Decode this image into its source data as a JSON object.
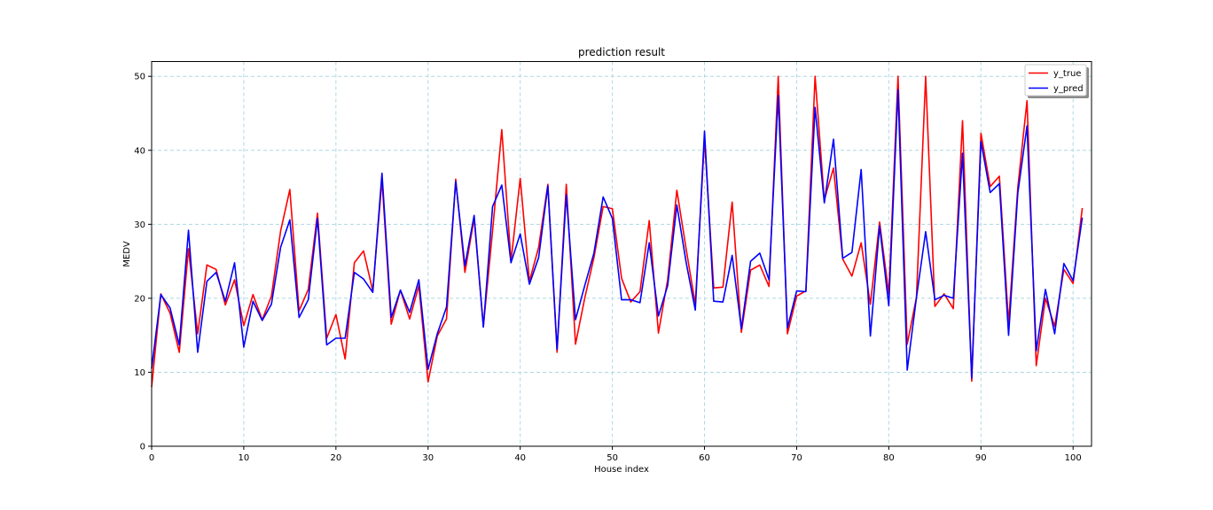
{
  "chart_data": {
    "type": "line",
    "title": "prediction result",
    "xlabel": "House index",
    "ylabel": "MEDV",
    "xlim": [
      0,
      102
    ],
    "ylim": [
      0,
      52
    ],
    "xticks": [
      0,
      10,
      20,
      30,
      40,
      50,
      60,
      70,
      80,
      90,
      100
    ],
    "yticks": [
      0,
      10,
      20,
      30,
      40,
      50
    ],
    "grid": true,
    "grid_style": "dashed",
    "grid_color": "#add8e6",
    "legend_position": "top-right",
    "series": [
      {
        "name": "y_true",
        "color": "#ff0000",
        "values": [
          8.0,
          20.6,
          18.0,
          12.7,
          26.7,
          15.2,
          24.5,
          23.9,
          19.1,
          22.5,
          16.3,
          20.5,
          17.1,
          20.3,
          29.1,
          34.7,
          18.3,
          21.2,
          31.5,
          14.6,
          17.8,
          11.8,
          24.8,
          26.4,
          21.0,
          36.0,
          16.5,
          21.1,
          17.2,
          21.7,
          8.7,
          14.9,
          17.2,
          36.1,
          23.5,
          30.8,
          16.2,
          29.1,
          42.8,
          25.0,
          36.2,
          22.3,
          26.9,
          35.4,
          12.7,
          35.4,
          13.8,
          20.0,
          25.5,
          32.4,
          32.1,
          22.7,
          19.5,
          20.9,
          30.5,
          15.3,
          22.5,
          34.6,
          26.7,
          19.2,
          41.5,
          21.4,
          21.5,
          33.0,
          15.4,
          23.8,
          24.5,
          21.6,
          50.0,
          15.2,
          20.3,
          21.0,
          50.0,
          33.3,
          37.6,
          25.3,
          23.0,
          27.5,
          19.2,
          30.3,
          20.6,
          50.0,
          13.8,
          20.1,
          50.0,
          18.9,
          20.6,
          18.6,
          44.0,
          8.8,
          42.3,
          35.1,
          36.5,
          16.6,
          35.0,
          46.7,
          10.9,
          20.0,
          16.2,
          23.9,
          22.0,
          32.2
        ]
      },
      {
        "name": "y_pred",
        "color": "#0000ff",
        "values": [
          10.5,
          20.5,
          18.7,
          13.7,
          29.2,
          12.7,
          22.3,
          23.5,
          19.6,
          24.8,
          13.4,
          19.6,
          17.0,
          19.2,
          26.9,
          30.6,
          17.4,
          19.8,
          30.8,
          13.7,
          14.6,
          14.6,
          23.5,
          22.6,
          20.8,
          36.9,
          17.4,
          21.1,
          18.1,
          22.5,
          10.4,
          15.2,
          18.8,
          35.8,
          24.4,
          31.2,
          16.1,
          32.4,
          35.3,
          24.8,
          28.7,
          21.9,
          25.5,
          35.2,
          13.1,
          34.0,
          17.1,
          21.7,
          26.1,
          33.7,
          30.8,
          19.8,
          19.8,
          19.4,
          27.5,
          17.6,
          21.7,
          32.6,
          24.9,
          18.4,
          42.6,
          19.6,
          19.5,
          25.8,
          15.9,
          25.0,
          26.1,
          22.5,
          47.4,
          16.0,
          21.0,
          20.9,
          45.8,
          32.9,
          41.5,
          25.4,
          26.2,
          37.4,
          14.9,
          29.8,
          19.0,
          48.2,
          10.3,
          20.1,
          29.0,
          19.8,
          20.4,
          20.0,
          39.6,
          9.2,
          41.2,
          34.3,
          35.5,
          15.0,
          34.2,
          43.3,
          12.9,
          21.2,
          15.2,
          24.7,
          22.4,
          30.9
        ]
      }
    ]
  }
}
